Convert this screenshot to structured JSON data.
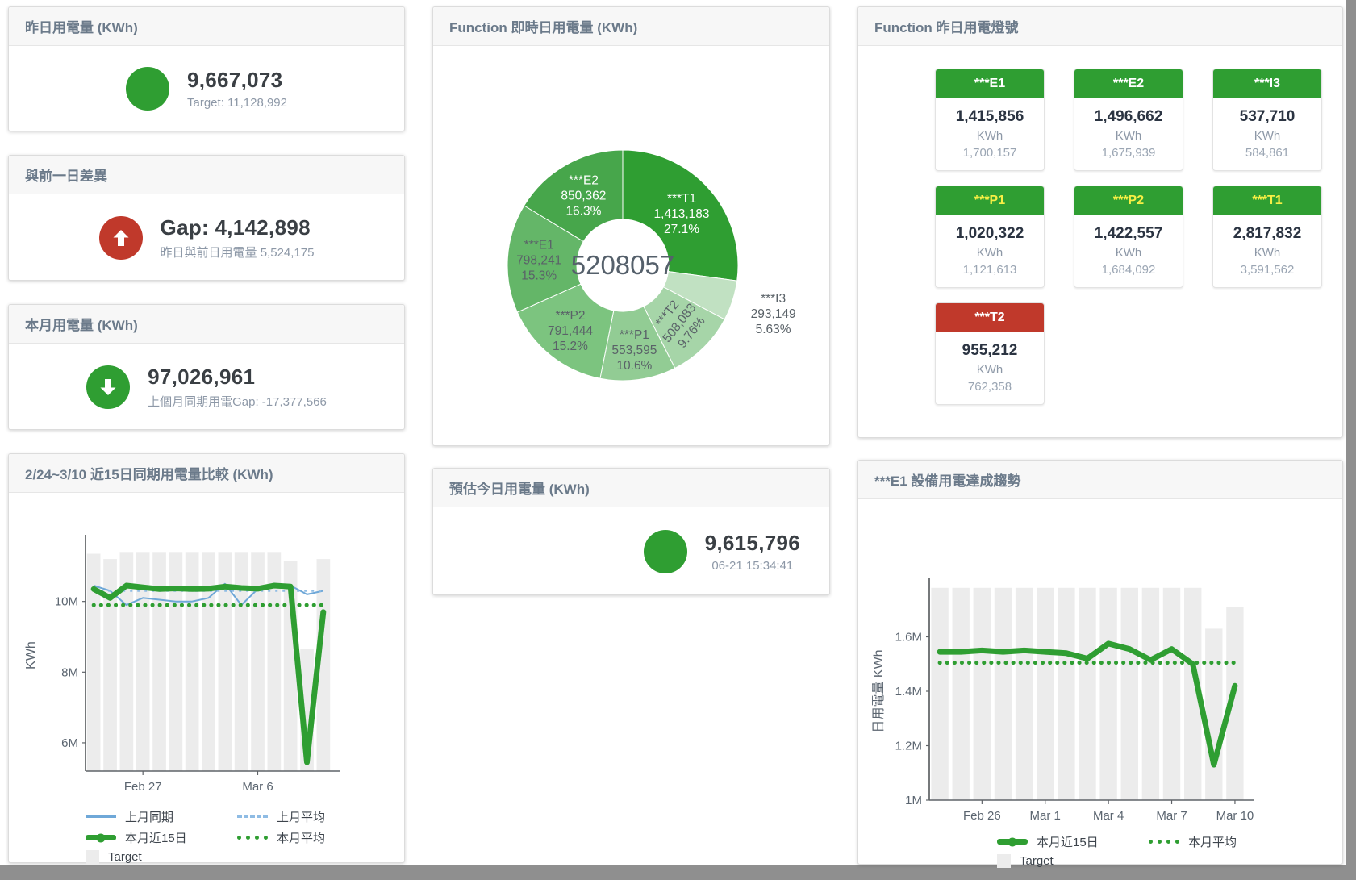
{
  "page": {
    "colors": {
      "primary_green": "#2f9e32",
      "alert_red": "#c0392b",
      "warning_yellow": "#f7ef45",
      "line_blue": "#6fa8d8",
      "target_gray": "#ececec"
    }
  },
  "panels": {
    "yesterday": {
      "title": "昨日用電量 (KWh)",
      "value": "9,667,073",
      "subtext": "Target: 11,128,992"
    },
    "prev_day_gap": {
      "title": "與前一日差異",
      "value": "Gap: 4,142,898",
      "subtext": "昨日與前日用電量 5,524,175"
    },
    "month": {
      "title": "本月用電量 (KWh)",
      "value": "97,026,961",
      "subtext": "上個月同期用電Gap: -17,377,566"
    },
    "estimate": {
      "title": "預估今日用電量 (KWh)",
      "value": "9,615,796",
      "subtext": "06-21 15:34:41"
    },
    "lights": {
      "title": "Function 昨日用電燈號",
      "tiles": [
        {
          "label": "***E1",
          "value": "1,415,856",
          "unit": "KWh",
          "target": "1,700,157",
          "header_color": "#2f9e32",
          "label_color": "#ffffff"
        },
        {
          "label": "***E2",
          "value": "1,496,662",
          "unit": "KWh",
          "target": "1,675,939",
          "header_color": "#2f9e32",
          "label_color": "#ffffff"
        },
        {
          "label": "***I3",
          "value": "537,710",
          "unit": "KWh",
          "target": "584,861",
          "header_color": "#2f9e32",
          "label_color": "#ffffff"
        },
        {
          "label": "***P1",
          "value": "1,020,322",
          "unit": "KWh",
          "target": "1,121,613",
          "header_color": "#2f9e32",
          "label_color": "#f7ef45"
        },
        {
          "label": "***P2",
          "value": "1,422,557",
          "unit": "KWh",
          "target": "1,684,092",
          "header_color": "#2f9e32",
          "label_color": "#f7ef45"
        },
        {
          "label": "***T1",
          "value": "2,817,832",
          "unit": "KWh",
          "target": "3,591,562",
          "header_color": "#2f9e32",
          "label_color": "#f7ef45"
        },
        {
          "label": "***T2",
          "value": "955,212",
          "unit": "KWh",
          "target": "762,358",
          "header_color": "#c0392b",
          "label_color": "#ffffff"
        }
      ]
    }
  },
  "chart_data": [
    {
      "type": "pie",
      "title": "Function 即時日用電量 (KWh)",
      "center_total": "5208057",
      "slices": [
        {
          "id": "t1",
          "label": "***T1",
          "value": 1413183,
          "display_value": "1,413,183",
          "pct": "27.1%",
          "color": "#2f9e32",
          "text_color": "#ffffff",
          "label_r": 97
        },
        {
          "id": "i3",
          "label": "***I3",
          "value": 293149,
          "display_value": "293,149",
          "pct": "5.63%",
          "color": "#c1e1c2",
          "text_color": "#5a6268",
          "label_r": 196
        },
        {
          "id": "t2",
          "label": "***T2",
          "value": 508083,
          "display_value": "508,083",
          "pct": "9.76%",
          "color": "#a6d5a8",
          "text_color": "#5a6268",
          "label_r": 100,
          "rotate": -52
        },
        {
          "id": "p1",
          "label": "***P1",
          "value": 553595,
          "display_value": "553,595",
          "pct": "10.6%",
          "color": "#92cc94",
          "text_color": "#5a6268",
          "label_r": 106
        },
        {
          "id": "p2",
          "label": "***P2",
          "value": 791444,
          "display_value": "791,444",
          "pct": "15.2%",
          "color": "#7cc47f",
          "text_color": "#5a6268",
          "label_r": 104
        },
        {
          "id": "e1",
          "label": "***E1",
          "value": 798241,
          "display_value": "798,241",
          "pct": "15.3%",
          "color": "#64b668",
          "text_color": "#5a6268",
          "label_r": 104
        },
        {
          "id": "e2",
          "label": "***E2",
          "value": 850362,
          "display_value": "850,362",
          "pct": "16.3%",
          "color": "#47a64b",
          "text_color": "#ffffff",
          "label_r": 99
        }
      ]
    },
    {
      "type": "line",
      "title": "2/24~3/10 近15日同期用電量比較 (KWh)",
      "ylabel": "KWh",
      "ylim_millions": [
        5.2,
        11.75
      ],
      "yticks": [
        {
          "v": 6,
          "label": "6M"
        },
        {
          "v": 8,
          "label": "8M"
        },
        {
          "v": 10,
          "label": "10M"
        }
      ],
      "xticks": [
        {
          "i": 3,
          "label": "Feb 27"
        },
        {
          "i": 10,
          "label": "Mar 6"
        }
      ],
      "target_bars": [
        11.35,
        11.2,
        11.4,
        11.4,
        11.4,
        11.4,
        11.4,
        11.4,
        11.4,
        11.4,
        11.4,
        11.4,
        11.15,
        8.65,
        11.2
      ],
      "series": [
        {
          "name": "上月同期",
          "style": "blue-solid",
          "values": [
            10.45,
            10.3,
            9.9,
            10.1,
            10.05,
            10.0,
            10.0,
            10.1,
            10.5,
            9.9,
            10.35,
            10.5,
            10.45,
            10.2,
            10.3
          ]
        },
        {
          "name": "上月平均",
          "style": "blue-dashed",
          "const": 10.3
        },
        {
          "name": "本月近15日",
          "style": "green-thick",
          "values": [
            10.35,
            10.1,
            10.45,
            10.4,
            10.35,
            10.37,
            10.35,
            10.36,
            10.42,
            10.38,
            10.36,
            10.45,
            10.42,
            5.45,
            9.7
          ]
        },
        {
          "name": "本月平均",
          "style": "green-dotted",
          "const": 9.9
        }
      ],
      "legend_rows": [
        [
          {
            "label": "上月同期",
            "style": "blue-solid"
          },
          {
            "label": "上月平均",
            "style": "blue-dashed"
          }
        ],
        [
          {
            "label": "本月近15日",
            "style": "green-thick"
          },
          {
            "label": "本月平均",
            "style": "green-dotted"
          }
        ],
        [
          {
            "label": "Target",
            "style": "target"
          }
        ]
      ]
    },
    {
      "type": "line",
      "title": "***E1 設備用電達成趨勢",
      "ylabel": "日用電量 KWh",
      "ylim_millions": [
        1.0,
        1.8
      ],
      "yticks": [
        {
          "v": 1,
          "label": "1M"
        },
        {
          "v": 1.2,
          "label": "1.2M"
        },
        {
          "v": 1.4,
          "label": "1.4M"
        },
        {
          "v": 1.6,
          "label": "1.6M"
        }
      ],
      "xticks": [
        {
          "i": 2,
          "label": "Feb 26"
        },
        {
          "i": 5,
          "label": "Mar 1"
        },
        {
          "i": 8,
          "label": "Mar 4"
        },
        {
          "i": 11,
          "label": "Mar 7"
        },
        {
          "i": 14,
          "label": "Mar 10"
        }
      ],
      "target_bars": [
        1.78,
        1.78,
        1.78,
        1.78,
        1.78,
        1.78,
        1.78,
        1.78,
        1.78,
        1.78,
        1.78,
        1.78,
        1.78,
        1.63,
        1.71
      ],
      "series": [
        {
          "name": "本月近15日",
          "style": "green-thick",
          "values": [
            1.545,
            1.545,
            1.55,
            1.545,
            1.55,
            1.545,
            1.54,
            1.52,
            1.575,
            1.555,
            1.515,
            1.555,
            1.5,
            1.13,
            1.42
          ]
        },
        {
          "name": "本月平均",
          "style": "green-dotted",
          "const": 1.505
        }
      ],
      "legend_rows": [
        [
          {
            "label": "本月近15日",
            "style": "green-thick"
          },
          {
            "label": "本月平均",
            "style": "green-dotted"
          }
        ],
        [
          {
            "label": "Target",
            "style": "target"
          }
        ]
      ]
    }
  ]
}
